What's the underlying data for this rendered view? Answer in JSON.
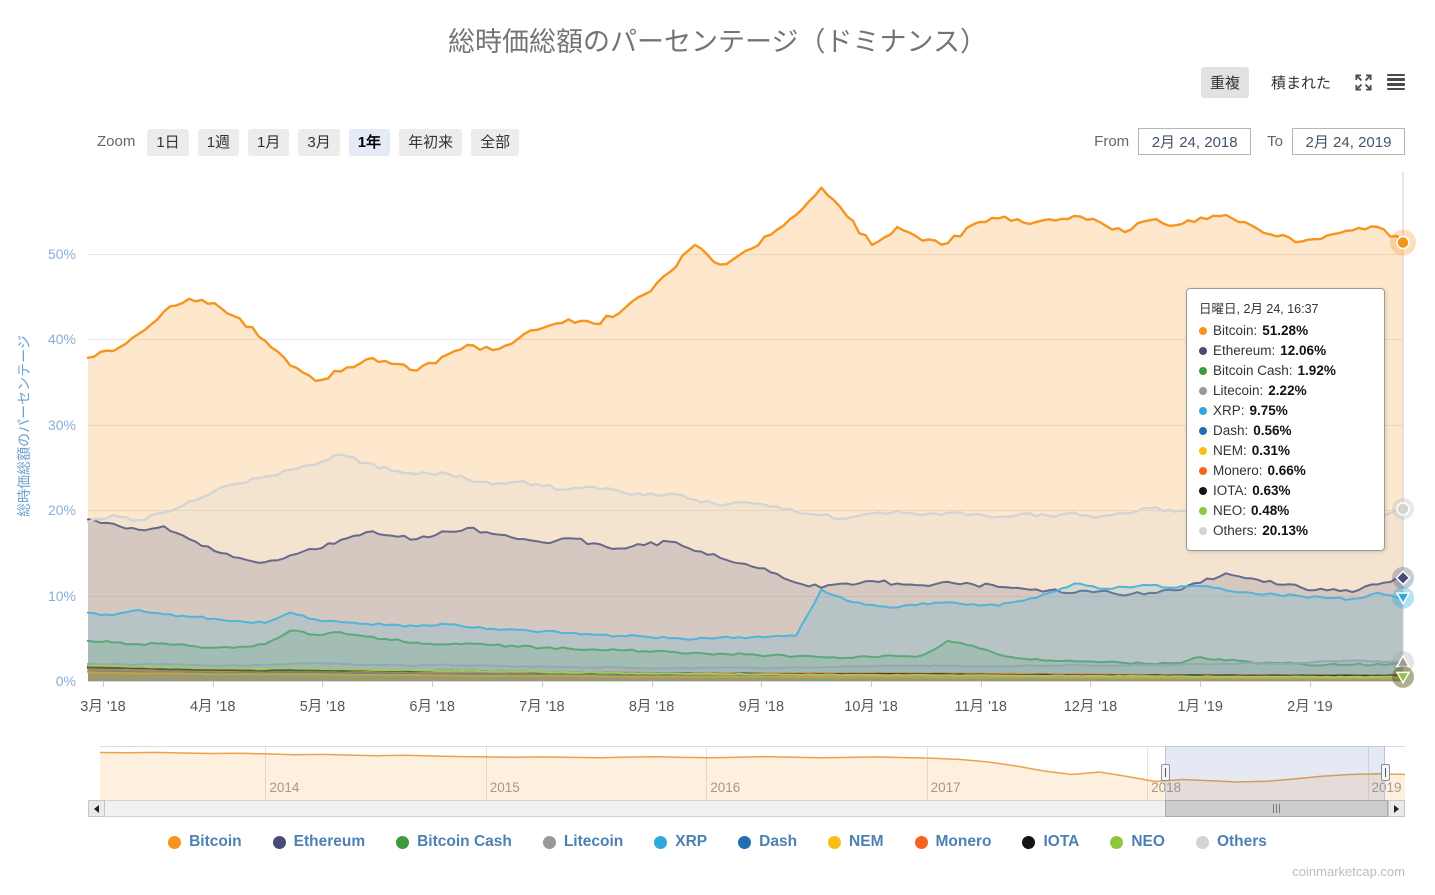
{
  "title": "総時価総額のパーセンテージ（ドミナンス）",
  "view_toggle": {
    "overlap": "重複",
    "stacked": "積まれた",
    "selected": "重複"
  },
  "range_selector": {
    "zoom_label": "Zoom",
    "buttons": [
      "1日",
      "1週",
      "1月",
      "3月",
      "1年",
      "年初来",
      "全部"
    ],
    "selected": "1年",
    "from_label": "From",
    "from_value": "2月 24, 2018",
    "to_label": "To",
    "to_value": "2月 24, 2019"
  },
  "tooltip": {
    "header": "日曜日, 2月 24, 16:37",
    "rows": [
      {
        "name": "Bitcoin",
        "value": "51.28%"
      },
      {
        "name": "Ethereum",
        "value": "12.06%"
      },
      {
        "name": "Bitcoin Cash",
        "value": "1.92%"
      },
      {
        "name": "Litecoin",
        "value": "2.22%"
      },
      {
        "name": "XRP",
        "value": "9.75%"
      },
      {
        "name": "Dash",
        "value": "0.56%"
      },
      {
        "name": "NEM",
        "value": "0.31%"
      },
      {
        "name": "Monero",
        "value": "0.66%"
      },
      {
        "name": "IOTA",
        "value": "0.63%"
      },
      {
        "name": "NEO",
        "value": "0.48%"
      },
      {
        "name": "Others",
        "value": "20.13%"
      }
    ]
  },
  "watermark": "coinmarketcap.com",
  "chart_data": {
    "type": "area",
    "mode": "overlapping",
    "title": "総時価総額のパーセンテージ（ドミナンス）",
    "ylabel": "総時価総額のパーセンテージ",
    "ylim": [
      0,
      59.5
    ],
    "grid": true,
    "legend_position": "bottom",
    "ytick_labels": [
      "0%",
      "10%",
      "20%",
      "30%",
      "40%",
      "50%"
    ],
    "ytick_values": [
      0,
      10,
      20,
      30,
      40,
      50
    ],
    "x_labels": [
      "3月 '18",
      "4月 '18",
      "5月 '18",
      "6月 '18",
      "7月 '18",
      "8月 '18",
      "9月 '18",
      "10月 '18",
      "11月 '18",
      "12月 '18",
      "1月 '19",
      "2月 '19"
    ],
    "x_range": [
      "2018-02-24",
      "2019-02-24"
    ],
    "series": [
      {
        "name": "Bitcoin",
        "color": "#f7941e",
        "marker": "circle",
        "halo": "rgba(247,148,30,0.30)",
        "values": [
          37.8,
          38.6,
          40.6,
          43.2,
          44.7,
          44.2,
          42.4,
          39.8,
          36.9,
          35.1,
          36.2,
          37.6,
          37.1,
          36.3,
          37.9,
          39.3,
          38.7,
          40.0,
          41.3,
          42.3,
          41.8,
          43.0,
          45.2,
          47.8,
          51.0,
          48.7,
          50.3,
          52.2,
          54.5,
          57.7,
          54.4,
          51.0,
          53.1,
          51.5,
          51.2,
          53.4,
          54.1,
          53.6,
          54.0,
          54.4,
          53.7,
          52.5,
          53.9,
          53.3,
          54.2,
          54.5,
          53.3,
          52.0,
          51.4,
          52.1,
          52.7,
          53.1,
          51.28
        ]
      },
      {
        "name": "Ethereum",
        "color": "#474b78",
        "marker": "diamond",
        "halo": "rgba(71,75,120,0.30)",
        "values": [
          18.9,
          18.4,
          17.7,
          18.1,
          16.6,
          15.2,
          14.4,
          13.9,
          14.7,
          15.4,
          16.5,
          17.4,
          17.0,
          16.6,
          17.5,
          17.9,
          17.2,
          16.6,
          16.2,
          16.7,
          16.1,
          15.5,
          15.9,
          16.3,
          15.2,
          14.4,
          13.7,
          12.7,
          11.5,
          10.9,
          11.4,
          11.7,
          11.4,
          11.2,
          11.6,
          11.3,
          11.0,
          10.8,
          10.6,
          10.3,
          10.5,
          10.0,
          10.3,
          10.6,
          11.5,
          12.6,
          12.0,
          11.3,
          10.9,
          10.6,
          10.4,
          11.3,
          12.06
        ]
      },
      {
        "name": "Bitcoin Cash",
        "color": "#3d9a3d",
        "marker": null,
        "halo": null,
        "values": [
          4.7,
          4.5,
          4.3,
          4.4,
          4.1,
          3.9,
          4.0,
          4.3,
          5.9,
          5.4,
          5.7,
          5.2,
          4.8,
          4.5,
          4.3,
          4.4,
          4.2,
          4.0,
          3.9,
          3.8,
          3.7,
          3.6,
          3.5,
          3.4,
          3.3,
          3.2,
          3.1,
          3.0,
          2.9,
          2.8,
          2.7,
          2.8,
          2.9,
          3.0,
          4.7,
          4.1,
          3.1,
          2.6,
          2.4,
          2.3,
          2.2,
          2.1,
          2.0,
          2.1,
          2.8,
          2.4,
          2.2,
          2.1,
          2.0,
          1.9,
          1.9,
          2.0,
          1.92
        ]
      },
      {
        "name": "Litecoin",
        "color": "#989898",
        "marker": "triangle",
        "halo": "rgba(150,150,150,0.25)",
        "values": [
          2.0,
          2.0,
          1.9,
          2.0,
          1.9,
          1.8,
          1.8,
          1.9,
          2.0,
          2.1,
          2.0,
          1.9,
          1.9,
          1.8,
          1.9,
          1.8,
          1.8,
          1.7,
          1.7,
          1.6,
          1.6,
          1.6,
          1.5,
          1.5,
          1.5,
          1.6,
          1.6,
          1.5,
          1.6,
          1.6,
          1.7,
          1.7,
          1.8,
          1.8,
          1.8,
          1.7,
          1.7,
          1.8,
          1.8,
          1.9,
          1.8,
          1.8,
          1.9,
          1.9,
          2.0,
          2.0,
          2.1,
          2.0,
          2.1,
          2.3,
          2.4,
          2.3,
          2.22
        ]
      },
      {
        "name": "XRP",
        "color": "#2ea9dd",
        "marker": "triangle-down",
        "halo": "rgba(46,169,221,0.35)",
        "values": [
          8.0,
          7.7,
          8.3,
          7.8,
          7.5,
          7.3,
          7.0,
          6.8,
          8.0,
          7.2,
          6.9,
          6.7,
          6.6,
          6.4,
          6.7,
          6.3,
          6.1,
          6.0,
          5.8,
          5.6,
          5.4,
          5.3,
          5.2,
          5.0,
          4.9,
          5.1,
          5.0,
          5.2,
          5.3,
          10.7,
          9.4,
          8.9,
          8.6,
          9.1,
          9.2,
          9.0,
          8.8,
          9.4,
          10.3,
          11.4,
          10.8,
          11.0,
          11.2,
          10.9,
          11.1,
          10.6,
          10.3,
          10.1,
          9.9,
          9.7,
          9.6,
          10.3,
          9.75
        ]
      },
      {
        "name": "Dash",
        "color": "#1f6fb2",
        "marker": null,
        "halo": null,
        "values": [
          1.1,
          1.1,
          1.0,
          1.0,
          1.0,
          0.9,
          0.9,
          0.9,
          1.0,
          1.0,
          0.9,
          0.9,
          0.9,
          0.8,
          0.8,
          0.8,
          0.8,
          0.8,
          0.8,
          0.7,
          0.7,
          0.7,
          0.7,
          0.7,
          0.7,
          0.7,
          0.7,
          0.7,
          0.7,
          0.7,
          0.7,
          0.7,
          0.7,
          0.7,
          0.7,
          0.7,
          0.7,
          0.6,
          0.6,
          0.6,
          0.6,
          0.6,
          0.6,
          0.6,
          0.6,
          0.6,
          0.6,
          0.6,
          0.6,
          0.6,
          0.6,
          0.58,
          0.56
        ]
      },
      {
        "name": "NEM",
        "color": "#f8bd19",
        "marker": null,
        "halo": null,
        "values": [
          1.0,
          0.95,
          0.9,
          0.9,
          0.85,
          0.8,
          0.8,
          0.8,
          0.8,
          0.8,
          0.75,
          0.7,
          0.7,
          0.7,
          0.65,
          0.6,
          0.6,
          0.6,
          0.6,
          0.6,
          0.55,
          0.5,
          0.5,
          0.5,
          0.5,
          0.5,
          0.5,
          0.5,
          0.48,
          0.45,
          0.45,
          0.45,
          0.42,
          0.42,
          0.4,
          0.4,
          0.4,
          0.4,
          0.38,
          0.38,
          0.36,
          0.35,
          0.35,
          0.35,
          0.34,
          0.34,
          0.33,
          0.33,
          0.32,
          0.32,
          0.31,
          0.31,
          0.31
        ]
      },
      {
        "name": "Monero",
        "color": "#f6641e",
        "marker": null,
        "halo": null,
        "values": [
          1.4,
          1.35,
          1.3,
          1.3,
          1.25,
          1.2,
          1.2,
          1.2,
          1.3,
          1.25,
          1.2,
          1.2,
          1.15,
          1.1,
          1.1,
          1.1,
          1.05,
          1.0,
          1.0,
          1.0,
          1.0,
          1.0,
          0.95,
          0.9,
          0.9,
          0.9,
          0.9,
          0.9,
          0.9,
          0.9,
          0.9,
          0.9,
          0.9,
          0.88,
          0.88,
          0.85,
          0.85,
          0.8,
          0.8,
          0.78,
          0.75,
          0.73,
          0.7,
          0.7,
          0.7,
          0.7,
          0.69,
          0.68,
          0.68,
          0.67,
          0.67,
          0.66,
          0.66
        ]
      },
      {
        "name": "IOTA",
        "color": "#141414",
        "marker": null,
        "halo": null,
        "values": [
          1.6,
          1.55,
          1.5,
          1.4,
          1.35,
          1.3,
          1.25,
          1.2,
          1.3,
          1.25,
          1.2,
          1.3,
          1.2,
          1.15,
          1.2,
          1.2,
          1.1,
          1.1,
          1.0,
          1.0,
          0.95,
          0.9,
          0.9,
          0.92,
          0.85,
          0.8,
          0.88,
          0.8,
          0.78,
          0.78,
          0.8,
          0.8,
          0.8,
          0.8,
          0.78,
          0.75,
          0.72,
          0.7,
          0.7,
          0.68,
          0.66,
          0.65,
          0.65,
          0.65,
          0.65,
          0.65,
          0.64,
          0.64,
          0.64,
          0.63,
          0.63,
          0.63,
          0.63
        ]
      },
      {
        "name": "NEO",
        "color": "#8dc63f",
        "marker": "triangle-down",
        "halo": "rgba(95,95,25,0.50)",
        "values": [
          1.8,
          1.75,
          1.7,
          1.6,
          1.55,
          1.5,
          1.45,
          1.4,
          1.5,
          1.45,
          1.4,
          1.35,
          1.3,
          1.25,
          1.2,
          1.2,
          1.1,
          1.1,
          1.05,
          1.0,
          1.0,
          0.95,
          0.9,
          0.9,
          0.85,
          0.8,
          0.8,
          0.78,
          0.72,
          0.7,
          0.7,
          0.7,
          0.7,
          0.7,
          0.68,
          0.65,
          0.65,
          0.62,
          0.6,
          0.6,
          0.58,
          0.56,
          0.55,
          0.55,
          0.52,
          0.5,
          0.5,
          0.5,
          0.5,
          0.49,
          0.48,
          0.48,
          0.48
        ]
      },
      {
        "name": "Others",
        "color": "#d4d4d4",
        "marker": "circle",
        "halo": "rgba(190,190,190,0.35)",
        "values": [
          18.6,
          19.4,
          18.8,
          19.7,
          21.0,
          22.2,
          23.1,
          23.9,
          24.7,
          25.3,
          26.5,
          25.5,
          24.6,
          24.2,
          24.4,
          23.6,
          23.0,
          23.3,
          22.8,
          22.4,
          22.7,
          22.2,
          21.7,
          21.9,
          21.2,
          20.5,
          20.9,
          20.4,
          19.8,
          19.4,
          19.0,
          19.6,
          19.9,
          19.4,
          19.7,
          19.5,
          19.2,
          19.6,
          19.3,
          19.7,
          19.2,
          19.6,
          20.2,
          19.8,
          20.3,
          19.9,
          20.4,
          20.1,
          20.7,
          20.2,
          19.3,
          18.9,
          20.13
        ]
      }
    ],
    "navigator": {
      "series_name": "Bitcoin",
      "years": [
        2014,
        2015,
        2016,
        2017,
        2018,
        2019
      ],
      "values": [
        95,
        94.5,
        95.2,
        94,
        93,
        93.6,
        92.2,
        90.5,
        91.2,
        89.8,
        88.6,
        89.4,
        88,
        86.8,
        86.2,
        85.4,
        86.2,
        85.2,
        84.6,
        85.8,
        86.4,
        85.2,
        84.4,
        85.6,
        86.8,
        85.6,
        84.4,
        85.2,
        86.2,
        84.8,
        83.4,
        81,
        76,
        68,
        58,
        51,
        56,
        47,
        37,
        41,
        38.5,
        36,
        37.5,
        42,
        47.5,
        51,
        52.5,
        51.3
      ],
      "selection": [
        0.8161,
        0.9847
      ]
    }
  },
  "legend": {
    "note": "items mirror chart_data.series names and colors"
  }
}
